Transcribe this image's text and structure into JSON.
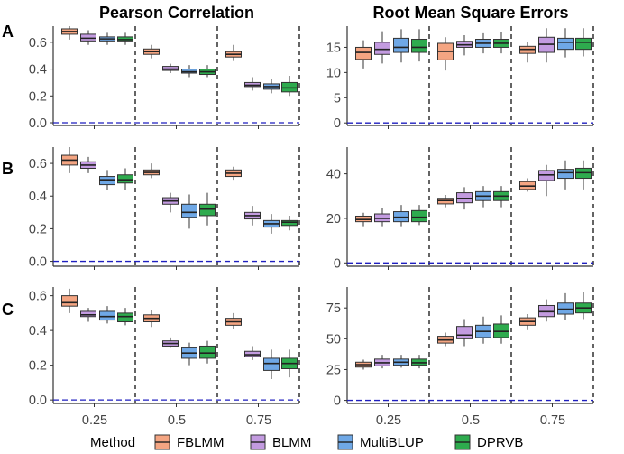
{
  "chart_data": {
    "type": "boxplot",
    "columns": [
      "Pearson Correlation",
      "Root Mean Square Errors"
    ],
    "row_labels": [
      "A",
      "B",
      "C"
    ],
    "categories": [
      "0.25",
      "0.5",
      "0.75"
    ],
    "legend": {
      "title": "Method",
      "placement": "bottom",
      "entries": [
        {
          "name": "FBLMM",
          "color": "#f4a582"
        },
        {
          "name": "BLMM",
          "color": "#c39be0"
        },
        {
          "name": "MultiBLUP",
          "color": "#6fa8e6"
        },
        {
          "name": "DPRVB",
          "color": "#2eab4e"
        }
      ]
    },
    "reference_line": {
      "y": 0,
      "color": "#1f1fbf",
      "style": "dashed"
    },
    "panels": [
      {
        "row": "A",
        "metric": "Pearson Correlation",
        "ylim": [
          -0.02,
          0.72
        ],
        "yticks": [
          0,
          0.2,
          0.4,
          0.6
        ],
        "ytick_labels": [
          "0.0",
          "0.2",
          "0.4",
          "0.6"
        ],
        "boxes": [
          {
            "cat": "0.25",
            "method": "FBLMM",
            "min": 0.62,
            "q1": 0.66,
            "med": 0.68,
            "q3": 0.7,
            "max": 0.72
          },
          {
            "cat": "0.25",
            "method": "BLMM",
            "min": 0.58,
            "q1": 0.61,
            "med": 0.63,
            "q3": 0.66,
            "max": 0.69
          },
          {
            "cat": "0.25",
            "method": "MultiBLUP",
            "min": 0.58,
            "q1": 0.61,
            "med": 0.625,
            "q3": 0.64,
            "max": 0.67
          },
          {
            "cat": "0.25",
            "method": "DPRVB",
            "min": 0.58,
            "q1": 0.61,
            "med": 0.62,
            "q3": 0.64,
            "max": 0.67
          },
          {
            "cat": "0.5",
            "method": "FBLMM",
            "min": 0.48,
            "q1": 0.51,
            "med": 0.53,
            "q3": 0.55,
            "max": 0.58
          },
          {
            "cat": "0.5",
            "method": "BLMM",
            "min": 0.37,
            "q1": 0.39,
            "med": 0.4,
            "q3": 0.42,
            "max": 0.44
          },
          {
            "cat": "0.5",
            "method": "MultiBLUP",
            "min": 0.34,
            "q1": 0.37,
            "med": 0.38,
            "q3": 0.4,
            "max": 0.43
          },
          {
            "cat": "0.5",
            "method": "DPRVB",
            "min": 0.34,
            "q1": 0.36,
            "med": 0.38,
            "q3": 0.4,
            "max": 0.43
          },
          {
            "cat": "0.75",
            "method": "FBLMM",
            "min": 0.46,
            "q1": 0.49,
            "med": 0.51,
            "q3": 0.53,
            "max": 0.58
          },
          {
            "cat": "0.75",
            "method": "BLMM",
            "min": 0.24,
            "q1": 0.27,
            "med": 0.28,
            "q3": 0.3,
            "max": 0.34
          },
          {
            "cat": "0.75",
            "method": "MultiBLUP",
            "min": 0.22,
            "q1": 0.25,
            "med": 0.27,
            "q3": 0.29,
            "max": 0.33
          },
          {
            "cat": "0.75",
            "method": "DPRVB",
            "min": 0.2,
            "q1": 0.23,
            "med": 0.26,
            "q3": 0.3,
            "max": 0.35
          }
        ]
      },
      {
        "row": "A",
        "metric": "Root Mean Square Errors",
        "ylim": [
          -0.5,
          19.2
        ],
        "yticks": [
          0,
          5,
          10,
          15
        ],
        "ytick_labels": [
          "0",
          "5",
          "10",
          "15"
        ],
        "boxes": [
          {
            "cat": "0.25",
            "method": "FBLMM",
            "min": 10.8,
            "q1": 12.6,
            "med": 14.0,
            "q3": 15.0,
            "max": 16.4
          },
          {
            "cat": "0.25",
            "method": "BLMM",
            "min": 11.8,
            "q1": 13.6,
            "med": 14.6,
            "q3": 16.0,
            "max": 18.2
          },
          {
            "cat": "0.25",
            "method": "MultiBLUP",
            "min": 12.0,
            "q1": 14.0,
            "med": 15.0,
            "q3": 16.8,
            "max": 18.6
          },
          {
            "cat": "0.25",
            "method": "DPRVB",
            "min": 12.2,
            "q1": 14.0,
            "med": 15.0,
            "q3": 16.6,
            "max": 18.6
          },
          {
            "cat": "0.5",
            "method": "FBLMM",
            "min": 10.4,
            "q1": 12.5,
            "med": 14.2,
            "q3": 15.8,
            "max": 17.0
          },
          {
            "cat": "0.5",
            "method": "BLMM",
            "min": 13.4,
            "q1": 15.0,
            "med": 15.5,
            "q3": 16.2,
            "max": 17.4
          },
          {
            "cat": "0.5",
            "method": "MultiBLUP",
            "min": 13.8,
            "q1": 15.0,
            "med": 15.8,
            "q3": 16.6,
            "max": 17.8
          },
          {
            "cat": "0.5",
            "method": "DPRVB",
            "min": 13.8,
            "q1": 15.0,
            "med": 15.8,
            "q3": 16.6,
            "max": 18.0
          },
          {
            "cat": "0.75",
            "method": "FBLMM",
            "min": 12.0,
            "q1": 13.8,
            "med": 14.6,
            "q3": 15.2,
            "max": 16.0
          },
          {
            "cat": "0.75",
            "method": "BLMM",
            "min": 12.0,
            "q1": 14.0,
            "med": 15.6,
            "q3": 17.0,
            "max": 18.8
          },
          {
            "cat": "0.75",
            "method": "MultiBLUP",
            "min": 13.0,
            "q1": 14.6,
            "med": 16.0,
            "q3": 16.8,
            "max": 18.8
          },
          {
            "cat": "0.75",
            "method": "DPRVB",
            "min": 13.2,
            "q1": 14.6,
            "med": 16.0,
            "q3": 16.8,
            "max": 18.8
          }
        ]
      },
      {
        "row": "B",
        "metric": "Pearson Correlation",
        "ylim": [
          -0.03,
          0.7
        ],
        "yticks": [
          0,
          0.2,
          0.4,
          0.6
        ],
        "ytick_labels": [
          "0.0",
          "0.2",
          "0.4",
          "0.6"
        ],
        "boxes": [
          {
            "cat": "0.25",
            "method": "FBLMM",
            "min": 0.54,
            "q1": 0.59,
            "med": 0.62,
            "q3": 0.65,
            "max": 0.7
          },
          {
            "cat": "0.25",
            "method": "BLMM",
            "min": 0.54,
            "q1": 0.57,
            "med": 0.59,
            "q3": 0.61,
            "max": 0.64
          },
          {
            "cat": "0.25",
            "method": "MultiBLUP",
            "min": 0.44,
            "q1": 0.47,
            "med": 0.5,
            "q3": 0.52,
            "max": 0.56
          },
          {
            "cat": "0.25",
            "method": "DPRVB",
            "min": 0.44,
            "q1": 0.48,
            "med": 0.5,
            "q3": 0.53,
            "max": 0.57
          },
          {
            "cat": "0.5",
            "method": "FBLMM",
            "min": 0.51,
            "q1": 0.53,
            "med": 0.545,
            "q3": 0.56,
            "max": 0.6
          },
          {
            "cat": "0.5",
            "method": "BLMM",
            "min": 0.3,
            "q1": 0.35,
            "med": 0.37,
            "q3": 0.39,
            "max": 0.42
          },
          {
            "cat": "0.5",
            "method": "MultiBLUP",
            "min": 0.2,
            "q1": 0.27,
            "med": 0.3,
            "q3": 0.35,
            "max": 0.41
          },
          {
            "cat": "0.5",
            "method": "DPRVB",
            "min": 0.22,
            "q1": 0.28,
            "med": 0.32,
            "q3": 0.35,
            "max": 0.42
          },
          {
            "cat": "0.75",
            "method": "FBLMM",
            "min": 0.5,
            "q1": 0.52,
            "med": 0.54,
            "q3": 0.56,
            "max": 0.58
          },
          {
            "cat": "0.75",
            "method": "BLMM",
            "min": 0.22,
            "q1": 0.26,
            "med": 0.28,
            "q3": 0.3,
            "max": 0.34
          },
          {
            "cat": "0.75",
            "method": "MultiBLUP",
            "min": 0.17,
            "q1": 0.21,
            "med": 0.23,
            "q3": 0.25,
            "max": 0.29
          },
          {
            "cat": "0.75",
            "method": "DPRVB",
            "min": 0.19,
            "q1": 0.22,
            "med": 0.24,
            "q3": 0.25,
            "max": 0.28
          }
        ]
      },
      {
        "row": "B",
        "metric": "Root Mean Square Errors",
        "ylim": [
          -1.5,
          52
        ],
        "yticks": [
          0,
          20,
          40
        ],
        "ytick_labels": [
          "0",
          "20",
          "40"
        ],
        "boxes": [
          {
            "cat": "0.25",
            "method": "FBLMM",
            "min": 16.5,
            "q1": 18.5,
            "med": 19.5,
            "q3": 21.0,
            "max": 22.5
          },
          {
            "cat": "0.25",
            "method": "BLMM",
            "min": 16.5,
            "q1": 18.5,
            "med": 20.0,
            "q3": 22.0,
            "max": 24.5
          },
          {
            "cat": "0.25",
            "method": "MultiBLUP",
            "min": 16.5,
            "q1": 18.5,
            "med": 20.5,
            "q3": 23.0,
            "max": 26.0
          },
          {
            "cat": "0.25",
            "method": "DPRVB",
            "min": 17.0,
            "q1": 18.5,
            "med": 20.5,
            "q3": 23.5,
            "max": 26.0
          },
          {
            "cat": "0.5",
            "method": "FBLMM",
            "min": 25.0,
            "q1": 26.5,
            "med": 28.0,
            "q3": 29.0,
            "max": 30.5
          },
          {
            "cat": "0.5",
            "method": "BLMM",
            "min": 24.0,
            "q1": 27.0,
            "med": 29.0,
            "q3": 31.5,
            "max": 34.0
          },
          {
            "cat": "0.5",
            "method": "MultiBLUP",
            "min": 25.0,
            "q1": 28.0,
            "med": 30.0,
            "q3": 32.0,
            "max": 34.5
          },
          {
            "cat": "0.5",
            "method": "DPRVB",
            "min": 25.0,
            "q1": 28.0,
            "med": 30.0,
            "q3": 32.0,
            "max": 34.5
          },
          {
            "cat": "0.75",
            "method": "FBLMM",
            "min": 32.0,
            "q1": 33.0,
            "med": 34.5,
            "q3": 36.5,
            "max": 38.0
          },
          {
            "cat": "0.75",
            "method": "BLMM",
            "min": 30.0,
            "q1": 37.0,
            "med": 39.5,
            "q3": 41.5,
            "max": 44.0
          },
          {
            "cat": "0.75",
            "method": "MultiBLUP",
            "min": 33.0,
            "q1": 38.0,
            "med": 40.5,
            "q3": 42.0,
            "max": 46.0
          },
          {
            "cat": "0.75",
            "method": "DPRVB",
            "min": 33.0,
            "q1": 38.0,
            "med": 40.5,
            "q3": 42.5,
            "max": 46.0
          }
        ]
      },
      {
        "row": "C",
        "metric": "Pearson Correlation",
        "ylim": [
          -0.02,
          0.65
        ],
        "yticks": [
          0,
          0.2,
          0.4,
          0.6
        ],
        "ytick_labels": [
          "0.0",
          "0.2",
          "0.4",
          "0.6"
        ],
        "boxes": [
          {
            "cat": "0.25",
            "method": "FBLMM",
            "min": 0.5,
            "q1": 0.54,
            "med": 0.56,
            "q3": 0.6,
            "max": 0.64
          },
          {
            "cat": "0.25",
            "method": "BLMM",
            "min": 0.45,
            "q1": 0.48,
            "med": 0.49,
            "q3": 0.51,
            "max": 0.53
          },
          {
            "cat": "0.25",
            "method": "MultiBLUP",
            "min": 0.44,
            "q1": 0.46,
            "med": 0.48,
            "q3": 0.51,
            "max": 0.54
          },
          {
            "cat": "0.25",
            "method": "DPRVB",
            "min": 0.43,
            "q1": 0.45,
            "med": 0.48,
            "q3": 0.5,
            "max": 0.53
          },
          {
            "cat": "0.5",
            "method": "FBLMM",
            "min": 0.42,
            "q1": 0.45,
            "med": 0.47,
            "q3": 0.49,
            "max": 0.52
          },
          {
            "cat": "0.5",
            "method": "BLMM",
            "min": 0.3,
            "q1": 0.31,
            "med": 0.325,
            "q3": 0.34,
            "max": 0.36
          },
          {
            "cat": "0.5",
            "method": "MultiBLUP",
            "min": 0.2,
            "q1": 0.24,
            "med": 0.27,
            "q3": 0.3,
            "max": 0.33
          },
          {
            "cat": "0.5",
            "method": "DPRVB",
            "min": 0.21,
            "q1": 0.24,
            "med": 0.27,
            "q3": 0.31,
            "max": 0.34
          },
          {
            "cat": "0.75",
            "method": "FBLMM",
            "min": 0.41,
            "q1": 0.43,
            "med": 0.45,
            "q3": 0.47,
            "max": 0.5
          },
          {
            "cat": "0.75",
            "method": "BLMM",
            "min": 0.23,
            "q1": 0.25,
            "med": 0.26,
            "q3": 0.28,
            "max": 0.31
          },
          {
            "cat": "0.75",
            "method": "MultiBLUP",
            "min": 0.12,
            "q1": 0.17,
            "med": 0.21,
            "q3": 0.24,
            "max": 0.29
          },
          {
            "cat": "0.75",
            "method": "DPRVB",
            "min": 0.13,
            "q1": 0.18,
            "med": 0.21,
            "q3": 0.24,
            "max": 0.29
          }
        ]
      },
      {
        "row": "C",
        "metric": "Root Mean Square Errors",
        "ylim": [
          -2.5,
          92
        ],
        "yticks": [
          0,
          25,
          50,
          75
        ],
        "ytick_labels": [
          "0",
          "25",
          "50",
          "75"
        ],
        "boxes": [
          {
            "cat": "0.25",
            "method": "FBLMM",
            "min": 25.0,
            "q1": 27.0,
            "med": 29.0,
            "q3": 31.0,
            "max": 33.0
          },
          {
            "cat": "0.25",
            "method": "BLMM",
            "min": 26.0,
            "q1": 28.0,
            "med": 30.5,
            "q3": 33.5,
            "max": 37.0
          },
          {
            "cat": "0.25",
            "method": "MultiBLUP",
            "min": 26.5,
            "q1": 28.5,
            "med": 31.0,
            "q3": 33.5,
            "max": 37.0
          },
          {
            "cat": "0.25",
            "method": "DPRVB",
            "min": 26.0,
            "q1": 28.5,
            "med": 30.5,
            "q3": 33.5,
            "max": 37.0
          },
          {
            "cat": "0.5",
            "method": "FBLMM",
            "min": 44.0,
            "q1": 46.5,
            "med": 49.0,
            "q3": 52.0,
            "max": 55.0
          },
          {
            "cat": "0.5",
            "method": "BLMM",
            "min": 44.0,
            "q1": 50.0,
            "med": 53.0,
            "q3": 60.0,
            "max": 66.0
          },
          {
            "cat": "0.5",
            "method": "MultiBLUP",
            "min": 46.0,
            "q1": 51.0,
            "med": 56.0,
            "q3": 61.0,
            "max": 68.0
          },
          {
            "cat": "0.5",
            "method": "DPRVB",
            "min": 46.0,
            "q1": 51.0,
            "med": 56.0,
            "q3": 62.0,
            "max": 69.0
          },
          {
            "cat": "0.75",
            "method": "FBLMM",
            "min": 57.0,
            "q1": 61.0,
            "med": 64.0,
            "q3": 67.0,
            "max": 70.0
          },
          {
            "cat": "0.75",
            "method": "BLMM",
            "min": 64.0,
            "q1": 68.0,
            "med": 72.0,
            "q3": 77.0,
            "max": 82.0
          },
          {
            "cat": "0.75",
            "method": "MultiBLUP",
            "min": 65.0,
            "q1": 70.0,
            "med": 74.0,
            "q3": 79.0,
            "max": 87.0
          },
          {
            "cat": "0.75",
            "method": "DPRVB",
            "min": 66.0,
            "q1": 71.0,
            "med": 75.0,
            "q3": 79.0,
            "max": 88.0
          }
        ]
      }
    ]
  }
}
